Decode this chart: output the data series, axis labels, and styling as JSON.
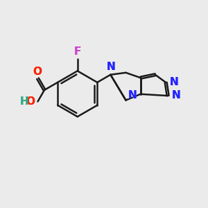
{
  "bg_color": "#ebebeb",
  "bond_color": "#1a1a1a",
  "bond_width": 1.8,
  "F_color": "#cc44cc",
  "O_color": "#ff2200",
  "N_color": "#2222ff",
  "H_color": "#33aa88",
  "font_size": 11,
  "figsize": [
    3.0,
    3.0
  ],
  "dpi": 100,
  "xlim": [
    0,
    10
  ],
  "ylim": [
    0,
    10
  ]
}
